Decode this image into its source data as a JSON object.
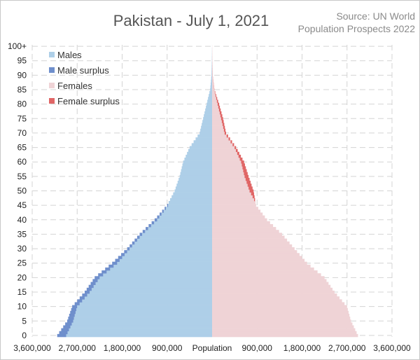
{
  "chart_data": {
    "type": "bar",
    "title": "Pakistan - July 1, 2021",
    "source": "Source: UN World Population Prospects 2022",
    "source_lines": [
      "Source: UN World",
      "Population Prospects 2022"
    ],
    "xlabel": "Population",
    "xlim": [
      -3600000,
      3600000
    ],
    "x_tick_labels": [
      "3,600,000",
      "2,700,000",
      "1,800,000",
      "900,000",
      "Population",
      "900,000",
      "1,800,000",
      "2,700,000",
      "3,600,000"
    ],
    "x_tick_values": [
      -3600000,
      -2700000,
      -1800000,
      -900000,
      0,
      900000,
      1800000,
      2700000,
      3600000
    ],
    "y_tick_labels": [
      "0",
      "5",
      "10",
      "15",
      "20",
      "25",
      "30",
      "35",
      "40",
      "45",
      "50",
      "55",
      "60",
      "65",
      "70",
      "75",
      "80",
      "85",
      "90",
      "95",
      "100+"
    ],
    "y_tick_values": [
      0,
      5,
      10,
      15,
      20,
      25,
      30,
      35,
      40,
      45,
      50,
      55,
      60,
      65,
      70,
      75,
      80,
      85,
      90,
      95,
      100
    ],
    "ages": [
      0,
      5,
      10,
      15,
      20,
      25,
      30,
      35,
      40,
      45,
      50,
      55,
      60,
      65,
      70,
      75,
      80,
      85,
      90,
      95,
      100
    ],
    "age_axis": "single-year ages 0 to 100+, values given at 5-year marks",
    "grid": true,
    "legend_position": "top-left",
    "legend": [
      {
        "label": "Males",
        "color": "#aecfe8"
      },
      {
        "label": "Male surplus",
        "color": "#6f8fcc"
      },
      {
        "label": "Females",
        "color": "#efd3d6"
      },
      {
        "label": "Female surplus",
        "color": "#e06666"
      }
    ],
    "series": [
      {
        "name": "Males",
        "color": "#aecfe8",
        "surplus_color": "#6f8fcc",
        "values": [
          3100000,
          2900000,
          2800000,
          2550000,
          2350000,
          2000000,
          1700000,
          1450000,
          1150000,
          900000,
          750000,
          650000,
          580000,
          450000,
          250000,
          180000,
          110000,
          40000,
          12000,
          5000,
          1000
        ]
      },
      {
        "name": "Females",
        "color": "#efd3d6",
        "surplus_color": "#e06666",
        "values": [
          2920000,
          2780000,
          2700000,
          2450000,
          2250000,
          1900000,
          1650000,
          1400000,
          1100000,
          880000,
          830000,
          730000,
          640000,
          480000,
          280000,
          220000,
          140000,
          45000,
          14000,
          6000,
          1500
        ]
      }
    ]
  }
}
